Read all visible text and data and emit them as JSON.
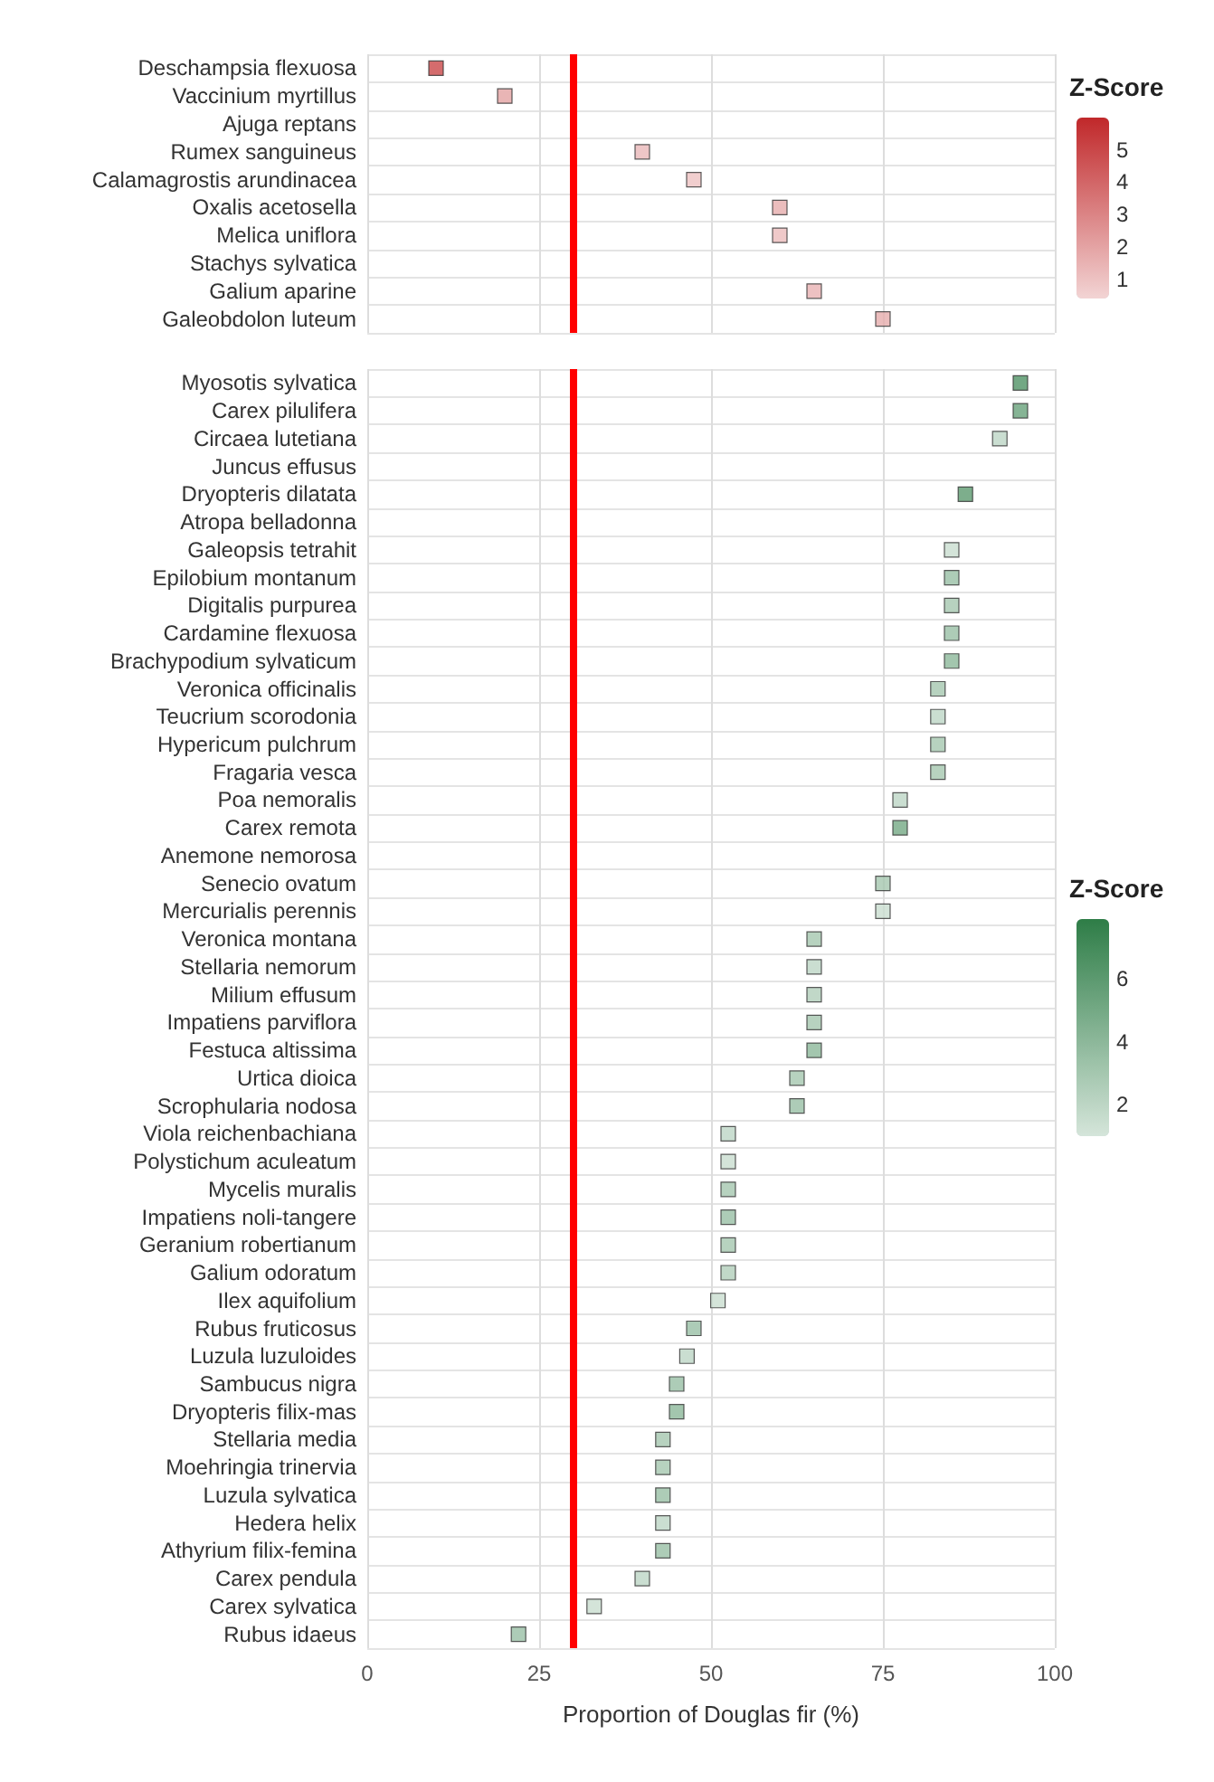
{
  "chart_data": [
    {
      "type": "scatter",
      "orientation": "horizontal",
      "categories": [
        "Deschampsia flexuosa",
        "Vaccinium myrtillus",
        "Ajuga reptans",
        "Rumex sanguineus",
        "Calamagrostis arundinacea",
        "Oxalis acetosella",
        "Melica uniflora",
        "Stachys sylvatica",
        "Galium aparine",
        "Galeobdolon luteum"
      ],
      "series": [
        {
          "values": [
            10,
            20,
            null,
            40,
            47.5,
            60,
            60,
            null,
            65,
            75
          ],
          "cvalues": [
            5,
            2,
            null,
            1.3,
            1,
            1.7,
            1.2,
            null,
            1.5,
            1.7
          ]
        }
      ],
      "xlim": [
        0,
        100
      ],
      "xticks": [
        0,
        25,
        50,
        75,
        100
      ],
      "tick_labels": "y",
      "marker": "square",
      "grid": true,
      "legend_title": "Z-Score",
      "clim": [
        0.4,
        6
      ],
      "cticks": [
        1,
        2,
        3,
        4,
        5
      ],
      "ref_lines": [
        {
          "axis": "x",
          "value": 30,
          "label": null,
          "color": "#ff0000"
        }
      ]
    },
    {
      "type": "scatter",
      "orientation": "horizontal",
      "categories": [
        "Myosotis sylvatica",
        "Carex pilulifera",
        "Circaea lutetiana",
        "Juncus effusus",
        "Dryopteris dilatata",
        "Atropa belladonna",
        "Galeopsis tetrahit",
        "Epilobium montanum",
        "Digitalis purpurea",
        "Cardamine flexuosa",
        "Brachypodium sylvaticum",
        "Veronica officinalis",
        "Teucrium scorodonia",
        "Hypericum pulchrum",
        "Fragaria vesca",
        "Poa nemoralis",
        "Carex remota",
        "Anemone nemorosa",
        "Senecio ovatum",
        "Mercurialis perennis",
        "Veronica montana",
        "Stellaria nemorum",
        "Milium effusum",
        "Impatiens parviflora",
        "Festuca altissima",
        "Urtica dioica",
        "Scrophularia nodosa",
        "Viola reichenbachiana",
        "Polystichum aculeatum",
        "Mycelis muralis",
        "Impatiens noli-tangere",
        "Geranium robertianum",
        "Galium odoratum",
        "Ilex aquifolium",
        "Rubus fruticosus",
        "Luzula luzuloides",
        "Sambucus nigra",
        "Dryopteris filix-mas",
        "Stellaria media",
        "Moehringia trinervia",
        "Luzula sylvatica",
        "Hedera helix",
        "Athyrium filix-femina",
        "Carex pendula",
        "Carex sylvatica",
        "Rubus idaeus"
      ],
      "series": [
        {
          "values": [
            95,
            95,
            92,
            null,
            87,
            null,
            85,
            85,
            85,
            85,
            85,
            83,
            83,
            83,
            83,
            77.5,
            77.5,
            null,
            75,
            75,
            65,
            65,
            65,
            65,
            65,
            62.5,
            62.5,
            52.5,
            52.5,
            52.5,
            52.5,
            52.5,
            52.5,
            51,
            47.5,
            46.5,
            45,
            45,
            43,
            43,
            43,
            43,
            43,
            40,
            33,
            22
          ],
          "cvalues": [
            6.5,
            5.5,
            2,
            null,
            6,
            null,
            1.5,
            3.5,
            3,
            3.5,
            4,
            3,
            2,
            3,
            3,
            2,
            5,
            null,
            3,
            1.5,
            3,
            2,
            2.5,
            3,
            4,
            3,
            3.5,
            2,
            1.5,
            3,
            3.5,
            3,
            2.5,
            1.5,
            3.5,
            2,
            3.5,
            4,
            3,
            3,
            3.5,
            2,
            3.5,
            2,
            1.5,
            3.5
          ]
        }
      ],
      "xlim": [
        0,
        100
      ],
      "xticks": [
        0,
        25,
        50,
        75,
        100
      ],
      "xlabel": "Proportion of Douglas fir (%)",
      "grid": true,
      "marker": "square",
      "legend_title": "Z-Score",
      "clim": [
        1,
        7.9
      ],
      "cticks": [
        2,
        4,
        6
      ],
      "ref_lines": [
        {
          "axis": "x",
          "value": 30,
          "label": null,
          "color": "#ff0000"
        }
      ]
    }
  ]
}
